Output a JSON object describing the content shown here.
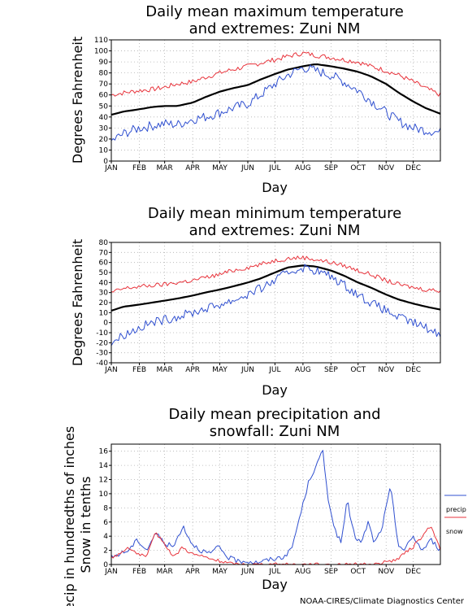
{
  "credit": "NOAA-CIRES/Climate Diagnostics Center",
  "colors": {
    "mean": "#000000",
    "max_extreme": "#e8343c",
    "min_extreme": "#3050d0",
    "precip": "#3050d0",
    "snow": "#e8343c",
    "grid": "#b0b0b0"
  },
  "chart_data": [
    {
      "type": "line",
      "title_line1": "Daily mean maximum temperature",
      "title_line2": "and extremes: Zuni NM",
      "xlabel": "Day",
      "ylabel": "Degrees Fahrenheit",
      "months": [
        "JAN",
        "FEB",
        "MAR",
        "APR",
        "MAY",
        "JUN",
        "JUL",
        "AUG",
        "SEP",
        "OCT",
        "NOV",
        "DEC"
      ],
      "ylim": [
        0,
        110
      ],
      "yticks": [
        "0",
        "10",
        "20",
        "30",
        "40",
        "50",
        "60",
        "70",
        "80",
        "90",
        "100",
        "110"
      ],
      "grid": true,
      "x": [
        1,
        15,
        32,
        46,
        60,
        74,
        91,
        105,
        121,
        135,
        152,
        166,
        182,
        196,
        213,
        227,
        244,
        258,
        274,
        288,
        305,
        319,
        335,
        349,
        365
      ],
      "series": [
        {
          "values": [
            42,
            45,
            47,
            49,
            50,
            50,
            53,
            58,
            63,
            66,
            69,
            74,
            79,
            83,
            86,
            88,
            86,
            84,
            81,
            77,
            70,
            62,
            54,
            48,
            43
          ]
        },
        {
          "values": [
            60,
            62,
            64,
            65,
            67,
            70,
            72,
            76,
            80,
            83,
            86,
            89,
            92,
            95,
            98,
            96,
            94,
            92,
            90,
            86,
            82,
            78,
            72,
            66,
            60
          ]
        },
        {
          "values": [
            18,
            25,
            30,
            32,
            34,
            33,
            38,
            40,
            44,
            48,
            52,
            60,
            70,
            78,
            85,
            82,
            78,
            72,
            64,
            55,
            44,
            36,
            30,
            28,
            26
          ]
        }
      ]
    },
    {
      "type": "line",
      "title_line1": "Daily mean minimum temperature",
      "title_line2": "and extremes: Zuni NM",
      "xlabel": "Day",
      "ylabel": "Degrees Fahrenheit",
      "months": [
        "JAN",
        "FEB",
        "MAR",
        "APR",
        "MAY",
        "JUN",
        "JUL",
        "AUG",
        "SEP",
        "OCT",
        "NOV",
        "DEC"
      ],
      "ylim": [
        -40,
        80
      ],
      "yticks": [
        "-40",
        "-30",
        "-20",
        "-10",
        "0",
        "10",
        "20",
        "30",
        "40",
        "50",
        "60",
        "70",
        "80"
      ],
      "grid": true,
      "x": [
        1,
        15,
        32,
        46,
        60,
        74,
        91,
        105,
        121,
        135,
        152,
        166,
        182,
        196,
        213,
        227,
        244,
        258,
        274,
        288,
        305,
        319,
        335,
        349,
        365
      ],
      "series": [
        {
          "values": [
            12,
            16,
            18,
            20,
            22,
            24,
            27,
            30,
            33,
            36,
            40,
            44,
            50,
            55,
            57,
            56,
            52,
            47,
            40,
            35,
            28,
            23,
            19,
            16,
            13
          ]
        },
        {
          "values": [
            30,
            34,
            36,
            37,
            38,
            40,
            42,
            45,
            48,
            52,
            55,
            58,
            62,
            64,
            65,
            63,
            60,
            57,
            52,
            48,
            42,
            38,
            35,
            33,
            32
          ]
        },
        {
          "values": [
            -20,
            -12,
            -5,
            0,
            3,
            6,
            10,
            14,
            18,
            22,
            28,
            34,
            42,
            50,
            55,
            52,
            46,
            38,
            28,
            20,
            12,
            5,
            0,
            -5,
            -12
          ]
        }
      ]
    },
    {
      "type": "line",
      "title_line1": "Daily mean precipitation and",
      "title_line2": "snowfall: Zuni NM",
      "xlabel": "Day",
      "ylabel_line1": "Precip in hundredths of inches",
      "ylabel_line2": "Snow in tenths",
      "months": [
        "JAN",
        "FEB",
        "MAR",
        "APR",
        "MAY",
        "JUN",
        "JUL",
        "AUG",
        "SEP",
        "OCT",
        "NOV",
        "DEC"
      ],
      "ylim": [
        0,
        17
      ],
      "yticks": [
        "0",
        "2",
        "4",
        "6",
        "8",
        "10",
        "12",
        "14",
        "16"
      ],
      "grid": true,
      "legend": [
        "precip",
        "snow"
      ],
      "legend_position": "right",
      "x": [
        1,
        10,
        20,
        30,
        40,
        50,
        60,
        70,
        80,
        90,
        100,
        110,
        120,
        130,
        140,
        150,
        160,
        170,
        180,
        190,
        200,
        210,
        220,
        228,
        235,
        240,
        248,
        255,
        262,
        270,
        278,
        285,
        292,
        300,
        310,
        318,
        325,
        335,
        345,
        355,
        365
      ],
      "series": [
        {
          "name": "precip",
          "values": [
            1,
            1.5,
            2,
            3.5,
            2,
            4.5,
            3,
            2.5,
            5.5,
            3,
            2,
            1.5,
            2.5,
            1,
            0.5,
            0.5,
            0.3,
            0.5,
            0.8,
            1,
            2,
            7,
            12,
            14,
            16,
            10,
            5,
            3,
            9,
            4,
            3,
            6,
            3,
            5,
            11,
            3,
            2,
            4,
            2,
            3.5,
            2
          ]
        },
        {
          "name": "snow",
          "values": [
            1,
            1.5,
            2.5,
            1.5,
            1,
            4.5,
            3,
            1,
            2.5,
            1.5,
            1.2,
            0.8,
            0.5,
            0.2,
            0,
            0,
            0,
            0,
            0,
            0,
            0,
            0,
            0,
            0,
            0,
            0,
            0,
            0,
            0,
            0,
            0,
            0,
            0,
            0.2,
            0.5,
            0.8,
            1.5,
            2.5,
            4,
            5.5,
            2
          ]
        }
      ]
    }
  ]
}
